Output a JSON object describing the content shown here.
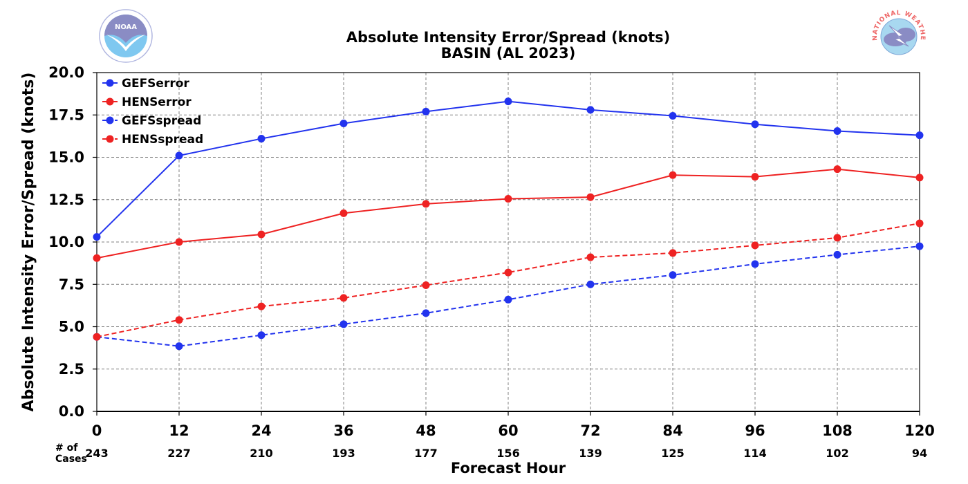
{
  "chart_data": {
    "type": "line",
    "title": "Absolute Intensity Error/Spread (knots)",
    "subtitle": "BASIN (AL 2023)",
    "xlabel": "Forecast Hour",
    "ylabel": "Absolute Intensity Error/Spread (knots)",
    "x": [
      0,
      12,
      24,
      36,
      48,
      60,
      72,
      84,
      96,
      108,
      120
    ],
    "x_tick_labels": [
      "0",
      "12",
      "24",
      "36",
      "48",
      "60",
      "72",
      "84",
      "96",
      "108",
      "120"
    ],
    "y_tick_labels": [
      "0.0",
      "2.5",
      "5.0",
      "7.5",
      "10.0",
      "12.5",
      "15.0",
      "17.5",
      "20.0"
    ],
    "xlim": [
      0,
      120
    ],
    "ylim": [
      0,
      20
    ],
    "grid": true,
    "legend_position": "top-left",
    "cases_label": "# of\nCases",
    "cases": [
      "243",
      "227",
      "210",
      "193",
      "177",
      "156",
      "139",
      "125",
      "114",
      "102",
      "94"
    ],
    "series": [
      {
        "name": "GEFSerror",
        "color": "#2233ee",
        "style": "solid",
        "values": [
          10.3,
          15.1,
          16.1,
          17.0,
          17.7,
          18.3,
          17.8,
          17.45,
          16.95,
          16.55,
          16.3
        ]
      },
      {
        "name": "HENSerror",
        "color": "#ee2222",
        "style": "solid",
        "values": [
          9.05,
          10.0,
          10.45,
          11.7,
          12.25,
          12.55,
          12.65,
          13.95,
          13.85,
          14.3,
          13.8
        ]
      },
      {
        "name": "GEFSspread",
        "color": "#2233ee",
        "style": "dashed",
        "values": [
          4.4,
          3.85,
          4.5,
          5.15,
          5.8,
          6.6,
          7.5,
          8.05,
          8.7,
          9.25,
          9.75
        ]
      },
      {
        "name": "HENSspread",
        "color": "#ee2222",
        "style": "dashed",
        "values": [
          4.4,
          5.4,
          6.2,
          6.7,
          7.45,
          8.2,
          9.1,
          9.35,
          9.8,
          10.25,
          11.1
        ]
      }
    ]
  },
  "logos": {
    "noaa_text": "NOAA",
    "nws_text": "NATIONAL WEATHER SERVICE"
  }
}
